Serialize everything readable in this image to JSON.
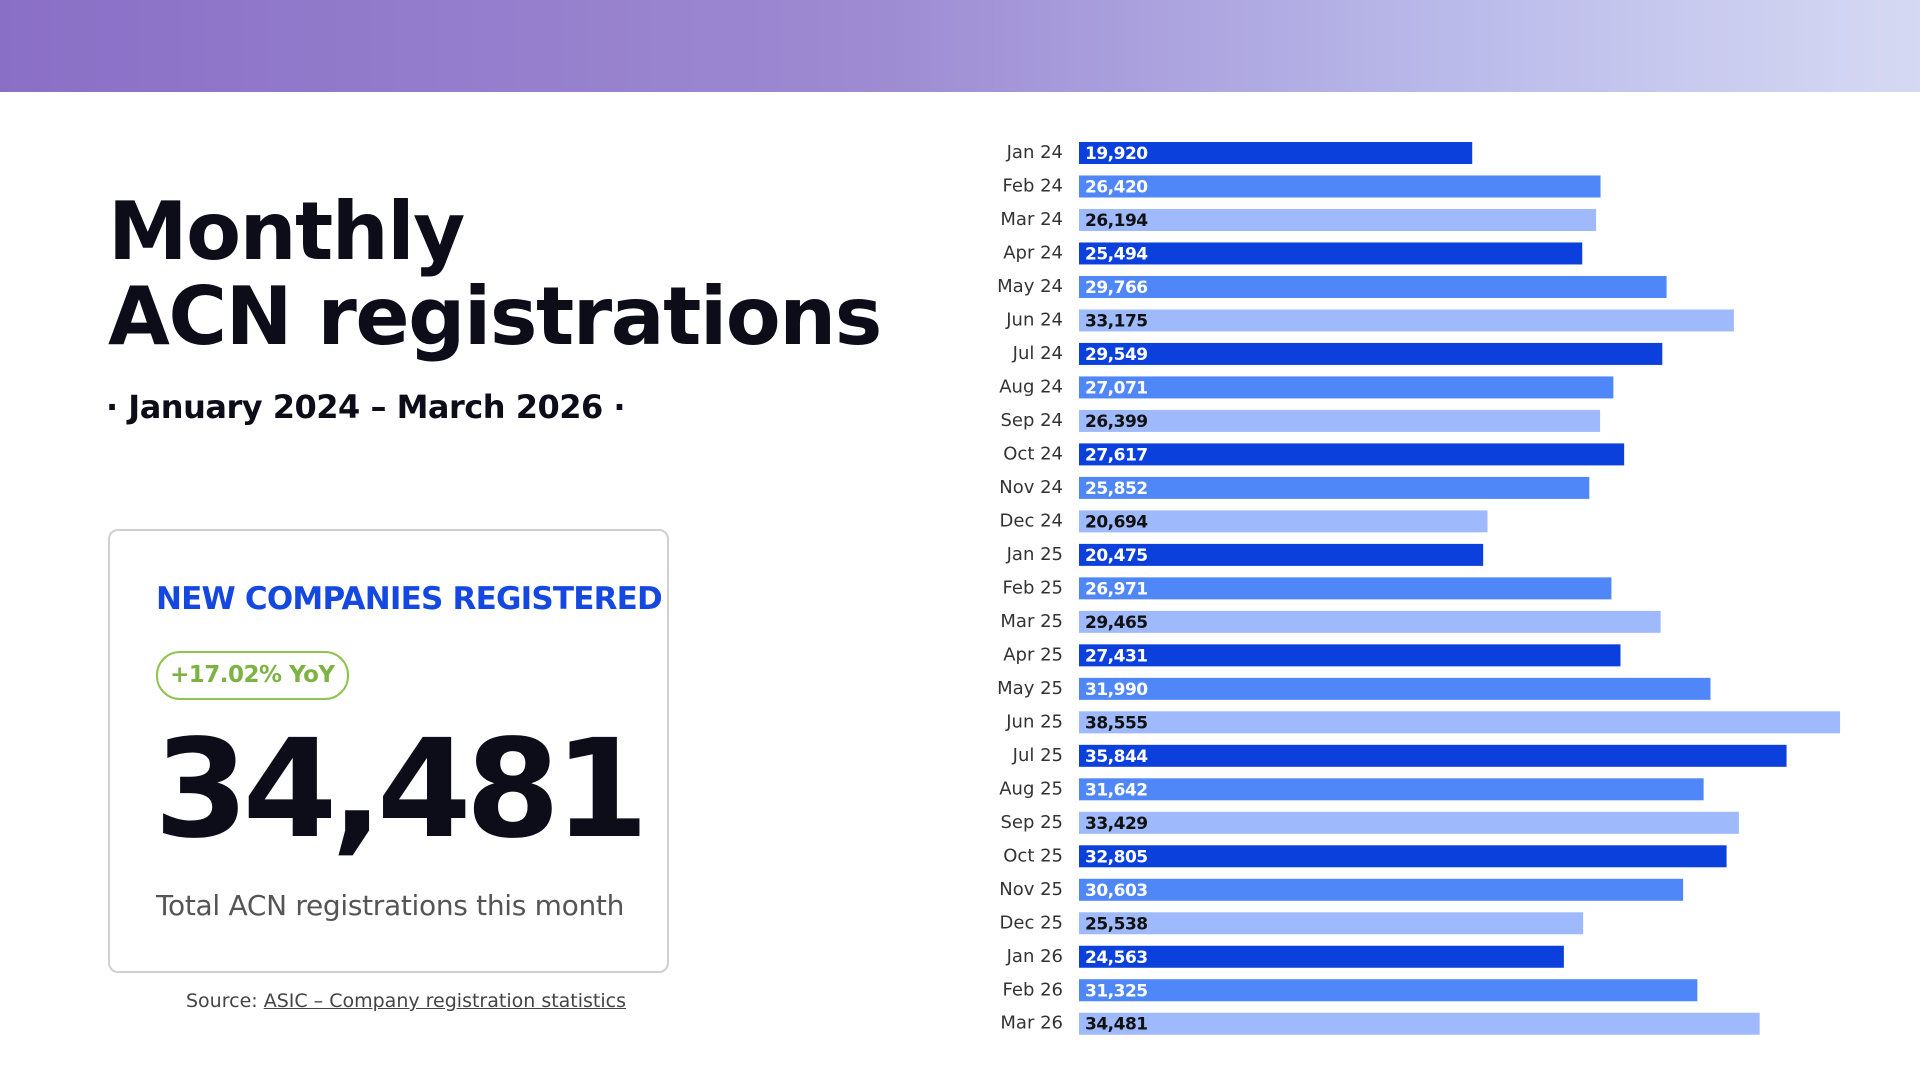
{
  "header": {
    "title_line1": "Monthly",
    "title_line2": "ACN registrations",
    "subtitle": "· January 2024 – March 2026 ·"
  },
  "card": {
    "label": "NEW COMPANIES REGISTERED",
    "badge": "+17.02% YoY",
    "big_number": "34,481",
    "caption": "Total ACN registrations this month"
  },
  "source": {
    "prefix": "Source:",
    "link": "ASIC – Company registration statistics"
  },
  "chart_data": {
    "type": "bar",
    "orientation": "horizontal",
    "categories": [
      "Jan 24",
      "Feb 24",
      "Mar 24",
      "Apr 24",
      "May 24",
      "Jun 24",
      "Jul 24",
      "Aug 24",
      "Sep 24",
      "Oct 24",
      "Nov 24",
      "Dec 24",
      "Jan 25",
      "Feb 25",
      "Mar 25",
      "Apr 25",
      "May 25",
      "Jun 25",
      "Jul 25",
      "Aug 25",
      "Sep 25",
      "Oct 25",
      "Nov 25",
      "Dec 25",
      "Jan 26",
      "Feb 26",
      "Mar 26"
    ],
    "values": [
      19920,
      26420,
      26194,
      25494,
      29766,
      33175,
      29549,
      27071,
      26399,
      27617,
      25852,
      20694,
      20475,
      26971,
      29465,
      27431,
      31990,
      38555,
      35844,
      31642,
      33429,
      32805,
      30603,
      25538,
      24563,
      31325,
      34481
    ],
    "value_labels": [
      "19,920",
      "26,420",
      "26,194",
      "25,494",
      "29,766",
      "33,175",
      "29,549",
      "27,071",
      "26,399",
      "27,617",
      "25,852",
      "20,694",
      "20,475",
      "26,971",
      "29,465",
      "27,431",
      "31,990",
      "38,555",
      "35,844",
      "31,642",
      "33,429",
      "32,805",
      "30,603",
      "25,538",
      "24,563",
      "31,325",
      "34,481"
    ],
    "colors": [
      "#0b40dc",
      "#4f86f8",
      "#9fbafc"
    ]
  }
}
